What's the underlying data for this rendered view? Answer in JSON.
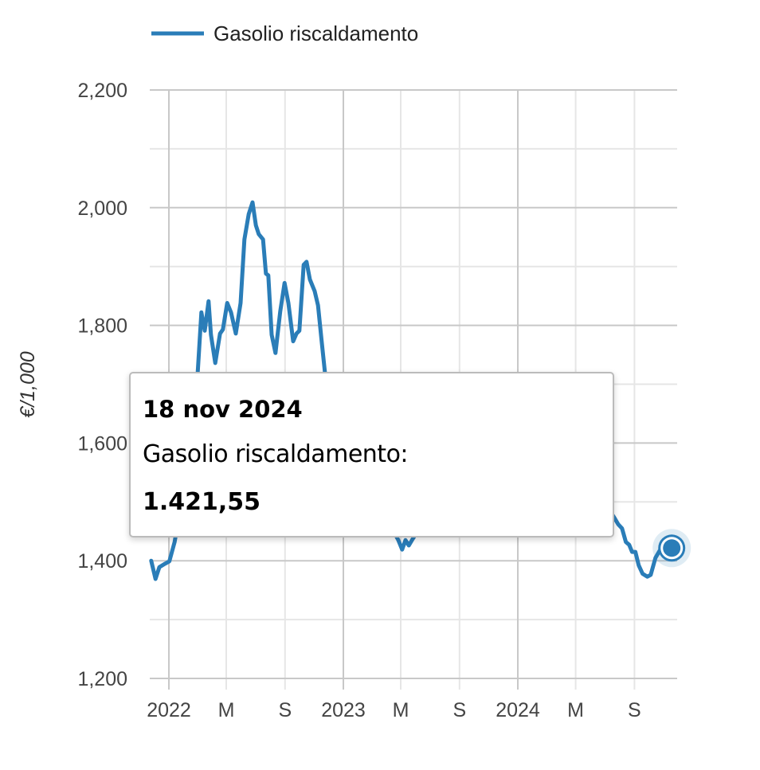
{
  "chart_data": {
    "type": "line",
    "title": "",
    "xlabel": "",
    "ylabel": "€/1,000",
    "ylim": [
      1200,
      2200
    ],
    "xlim": [
      "2021-11-25",
      "2024-11-18"
    ],
    "y_ticks": [
      "1,200",
      "1,400",
      "1,600",
      "1,800",
      "2,000",
      "2,200"
    ],
    "x_ticks": [
      {
        "label": "2022",
        "date": "2022-01-01",
        "major": true
      },
      {
        "label": "M",
        "date": "2022-05-01",
        "major": false
      },
      {
        "label": "S",
        "date": "2022-09-01",
        "major": false
      },
      {
        "label": "2023",
        "date": "2023-01-01",
        "major": true
      },
      {
        "label": "M",
        "date": "2023-05-01",
        "major": false
      },
      {
        "label": "S",
        "date": "2023-09-01",
        "major": false
      },
      {
        "label": "2024",
        "date": "2024-01-01",
        "major": true
      },
      {
        "label": "M",
        "date": "2024-05-01",
        "major": false
      },
      {
        "label": "S",
        "date": "2024-09-01",
        "major": false
      }
    ],
    "grid": true,
    "legend_position": "top-left",
    "series": [
      {
        "name": "Gasolio riscaldamento",
        "color": "#2a7db8",
        "points": [
          [
            "2021-11-25",
            1400
          ],
          [
            "2021-12-04",
            1369
          ],
          [
            "2021-12-12",
            1389
          ],
          [
            "2021-12-24",
            1395
          ],
          [
            "2022-01-02",
            1399
          ],
          [
            "2022-01-13",
            1432
          ],
          [
            "2022-02-17",
            1595
          ],
          [
            "2022-03-02",
            1716
          ],
          [
            "2022-03-10",
            1822
          ],
          [
            "2022-03-17",
            1791
          ],
          [
            "2022-03-25",
            1841
          ],
          [
            "2022-03-30",
            1784
          ],
          [
            "2022-04-08",
            1736
          ],
          [
            "2022-04-18",
            1786
          ],
          [
            "2022-04-24",
            1793
          ],
          [
            "2022-05-03",
            1838
          ],
          [
            "2022-05-11",
            1822
          ],
          [
            "2022-05-21",
            1786
          ],
          [
            "2022-05-31",
            1838
          ],
          [
            "2022-06-08",
            1946
          ],
          [
            "2022-06-17",
            1989
          ],
          [
            "2022-06-25",
            2009
          ],
          [
            "2022-07-02",
            1970
          ],
          [
            "2022-07-08",
            1955
          ],
          [
            "2022-07-17",
            1946
          ],
          [
            "2022-07-23",
            1888
          ],
          [
            "2022-07-28",
            1885
          ],
          [
            "2022-08-04",
            1784
          ],
          [
            "2022-08-12",
            1753
          ],
          [
            "2022-08-22",
            1824
          ],
          [
            "2022-08-31",
            1872
          ],
          [
            "2022-09-08",
            1838
          ],
          [
            "2022-09-18",
            1773
          ],
          [
            "2022-09-25",
            1786
          ],
          [
            "2022-10-01",
            1791
          ],
          [
            "2022-10-10",
            1903
          ],
          [
            "2022-10-16",
            1908
          ],
          [
            "2022-10-23",
            1878
          ],
          [
            "2022-11-02",
            1858
          ],
          [
            "2022-11-09",
            1834
          ],
          [
            "2022-11-17",
            1770
          ],
          [
            "2022-11-24",
            1716
          ],
          [
            "2022-12-14",
            1622
          ],
          [
            "2023-01-01",
            1568
          ],
          [
            "2023-02-02",
            1541
          ],
          [
            "2023-03-08",
            1486
          ],
          [
            "2023-04-10",
            1459
          ],
          [
            "2023-04-26",
            1435
          ],
          [
            "2023-05-04",
            1419
          ],
          [
            "2023-05-11",
            1435
          ],
          [
            "2023-05-18",
            1426
          ],
          [
            "2023-05-26",
            1437
          ],
          [
            "2023-06-23",
            1473
          ],
          [
            "2023-08-23",
            1595
          ],
          [
            "2023-10-12",
            1622
          ],
          [
            "2023-12-01",
            1554
          ],
          [
            "2024-01-20",
            1541
          ],
          [
            "2024-03-10",
            1581
          ],
          [
            "2024-04-29",
            1554
          ],
          [
            "2024-06-18",
            1514
          ],
          [
            "2024-07-21",
            1473
          ],
          [
            "2024-07-29",
            1462
          ],
          [
            "2024-08-06",
            1455
          ],
          [
            "2024-08-14",
            1432
          ],
          [
            "2024-08-21",
            1427
          ],
          [
            "2024-08-27",
            1415
          ],
          [
            "2024-09-03",
            1415
          ],
          [
            "2024-09-10",
            1392
          ],
          [
            "2024-09-18",
            1378
          ],
          [
            "2024-09-28",
            1373
          ],
          [
            "2024-10-05",
            1376
          ],
          [
            "2024-10-15",
            1405
          ],
          [
            "2024-10-25",
            1419
          ],
          [
            "2024-11-18",
            1421.55
          ]
        ]
      }
    ],
    "tooltip": {
      "date": "18 nov 2024",
      "series_label": "Gasolio riscaldamento:",
      "value": "1.421,55"
    }
  }
}
